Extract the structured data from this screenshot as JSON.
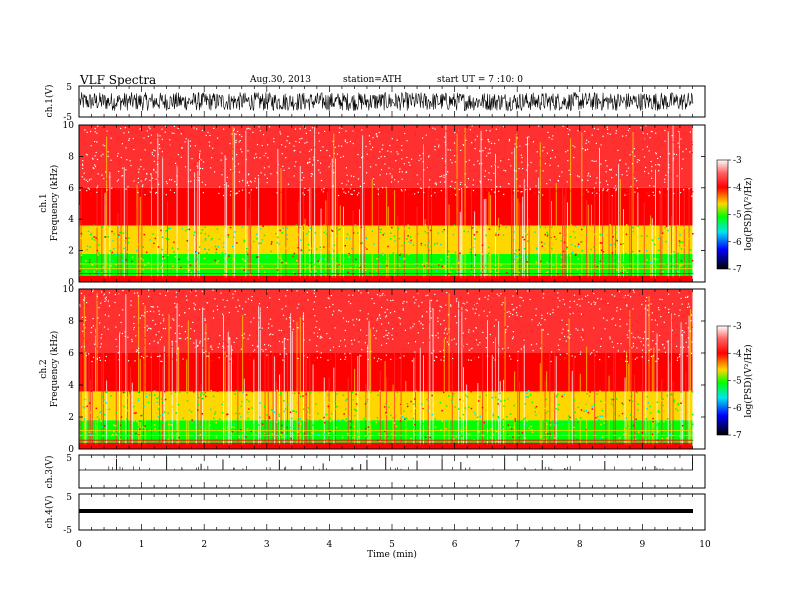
{
  "header": {
    "title": "VLF Spectra",
    "date": "Aug.30, 2013",
    "station": "station=ATH",
    "start": "start UT =  7 :10: 0"
  },
  "colors": {
    "spectrum": [
      "#ffffff",
      "#ff3030",
      "#ff0000",
      "#ffd700",
      "#00ff00",
      "#00e5ee",
      "#0000ff",
      "#000000"
    ]
  },
  "chart_data": [
    {
      "id": "ch1-waveform",
      "type": "line",
      "ylabel": "ch.1(V)",
      "ylim": [
        -5,
        5
      ],
      "yticks": [
        "5",
        "-5"
      ],
      "xlim": [
        0,
        10
      ],
      "amplitude_range": [
        -3,
        3
      ]
    },
    {
      "id": "ch1-spectrogram",
      "type": "heatmap",
      "ylabel_top": "ch.1",
      "ylabel": "Frequency (kHz)",
      "ylim": [
        0,
        10
      ],
      "yticks": [
        "0",
        "2",
        "4",
        "6",
        "8",
        "10"
      ],
      "xlim": [
        0,
        10
      ],
      "data_end_min": 9.8,
      "colorbar": {
        "label": "log(PSD)(V²/Hz)",
        "range": [
          -7,
          -3
        ],
        "ticks": [
          "-3",
          "-4",
          "-5",
          "-6",
          "-7"
        ]
      },
      "bands_kHz": [
        {
          "range": [
            0,
            0.4
          ],
          "level": -4.2
        },
        {
          "range": [
            0.4,
            1.8
          ],
          "level": -5.2
        },
        {
          "range": [
            1.8,
            3.6
          ],
          "level": -4.9
        },
        {
          "range": [
            3.6,
            6.0
          ],
          "level": -4.1
        },
        {
          "range": [
            6.0,
            10
          ],
          "level": -3.4
        }
      ]
    },
    {
      "id": "ch2-spectrogram",
      "type": "heatmap",
      "ylabel_top": "ch.2",
      "ylabel": "Frequency (kHz)",
      "ylim": [
        0,
        10
      ],
      "yticks": [
        "0",
        "2",
        "4",
        "6",
        "8",
        "10"
      ],
      "xlim": [
        0,
        10
      ],
      "data_end_min": 9.8,
      "colorbar": {
        "label": "log(PSD)(V²/Hz)",
        "range": [
          -7,
          -3
        ],
        "ticks": [
          "-3",
          "-4",
          "-5",
          "-6",
          "-7"
        ]
      }
    },
    {
      "id": "ch3-waveform",
      "type": "line",
      "ylabel": "ch.3(V)",
      "ylim": [
        -5,
        5
      ],
      "yticks": [
        "5"
      ],
      "xlim": [
        0,
        10
      ],
      "baseline": 0,
      "spikes_min": [
        0.6,
        1.4,
        1.95,
        2.3,
        3.2,
        3.55,
        3.9,
        4.5,
        4.6,
        4.9,
        5.4,
        5.8,
        6.1,
        6.8,
        7.4,
        8.4,
        9.2,
        9.8
      ]
    },
    {
      "id": "ch4-waveform",
      "type": "line",
      "ylabel": "ch.4(V)",
      "ylim": [
        -5,
        5
      ],
      "yticks": [
        "5",
        "-5"
      ],
      "xlim": [
        0,
        10
      ],
      "baseline": 0
    }
  ],
  "xaxis": {
    "label": "Time (min)",
    "ticks": [
      "0",
      "1",
      "2",
      "3",
      "4",
      "5",
      "6",
      "7",
      "8",
      "9",
      "10"
    ]
  }
}
